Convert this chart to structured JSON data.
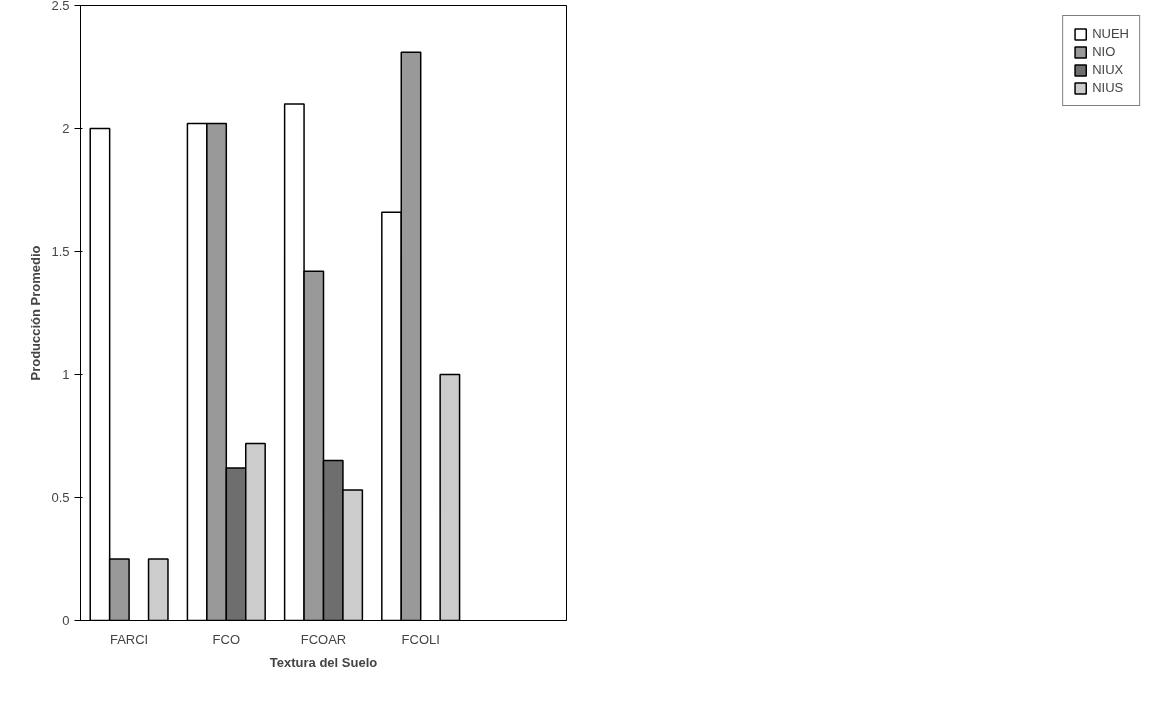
{
  "chart_data": {
    "type": "bar",
    "xlabel": "Textura del Suelo",
    "ylabel": "Producción Promedio",
    "categories": [
      "FARCI",
      "FCO",
      "FCOAR",
      "FCOLI",
      null
    ],
    "series": [
      {
        "name": "NUEH",
        "color": "#ffffff",
        "values": [
          2.0,
          2.02,
          2.1,
          1.66,
          null
        ]
      },
      {
        "name": "NIO",
        "color": "#999999",
        "values": [
          0.25,
          2.02,
          1.42,
          2.31,
          null
        ]
      },
      {
        "name": "NIUX",
        "color": "#6e6e6e",
        "values": [
          null,
          0.62,
          0.65,
          null,
          null
        ]
      },
      {
        "name": "NIUS",
        "color": "#cccccc",
        "values": [
          0.25,
          0.72,
          0.53,
          1.0,
          null
        ]
      }
    ],
    "ylim": [
      0,
      2.5
    ],
    "yticks": [
      0,
      0.5,
      1,
      1.5,
      2,
      2.5
    ],
    "grid": false,
    "legend": "right"
  }
}
